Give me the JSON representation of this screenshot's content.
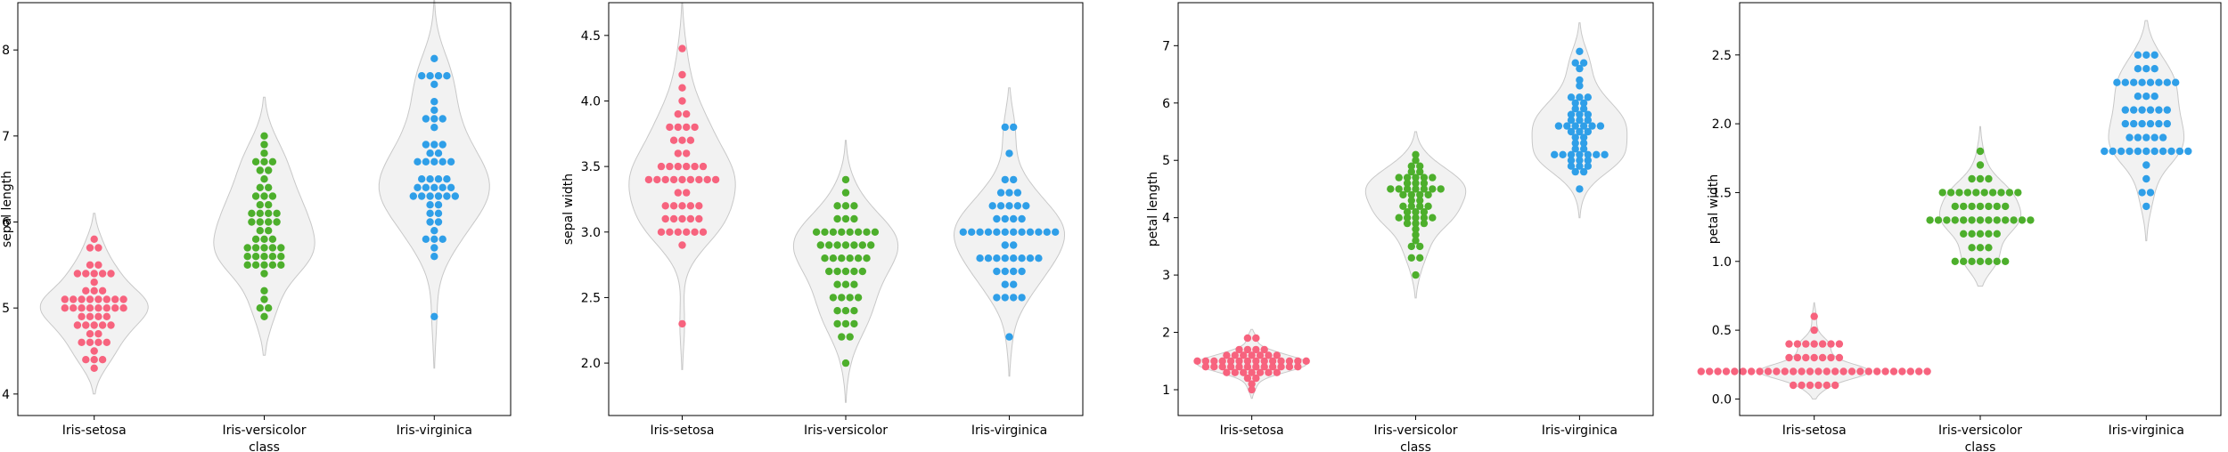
{
  "figure": {
    "background": "#ffffff",
    "violin_fill": "#f2f2f2",
    "violin_stroke": "#c8c8c8",
    "species_colors": {
      "Iris-setosa": "#f7637e",
      "Iris-versicolor": "#4daf2c",
      "Iris-virginica": "#2f9fe8"
    }
  },
  "chart_data": [
    {
      "type": "violin-swarm",
      "xlabel": "class",
      "ylabel": "sepal length",
      "categories": [
        "Iris-setosa",
        "Iris-versicolor",
        "Iris-virginica"
      ],
      "ylim": [
        3.75,
        8.55
      ],
      "yticks": [
        4,
        5,
        6,
        7,
        8
      ],
      "yticklabels": [
        "4",
        "5",
        "6",
        "7",
        "8"
      ],
      "violin_range": [
        [
          4.0,
          6.1
        ],
        [
          4.45,
          7.45
        ],
        [
          4.3,
          8.8
        ]
      ],
      "series": [
        {
          "name": "Iris-setosa",
          "values": [
            5.1,
            4.9,
            4.7,
            4.6,
            5.0,
            5.4,
            4.6,
            5.0,
            4.4,
            4.9,
            5.4,
            4.8,
            4.8,
            4.3,
            5.8,
            5.7,
            5.4,
            5.1,
            5.7,
            5.1,
            5.4,
            5.1,
            4.6,
            5.1,
            4.8,
            5.0,
            5.0,
            5.2,
            5.2,
            4.7,
            4.8,
            5.4,
            5.2,
            5.5,
            4.9,
            5.0,
            5.5,
            4.9,
            4.4,
            5.1,
            5.0,
            4.5,
            4.4,
            5.0,
            5.1,
            4.8,
            5.1,
            4.6,
            5.3,
            5.0
          ]
        },
        {
          "name": "Iris-versicolor",
          "values": [
            7.0,
            6.4,
            6.9,
            5.5,
            6.5,
            5.7,
            6.3,
            4.9,
            6.6,
            5.2,
            5.0,
            5.9,
            6.0,
            6.1,
            5.6,
            6.7,
            5.6,
            5.8,
            6.2,
            5.6,
            5.9,
            6.1,
            6.3,
            6.1,
            6.4,
            6.6,
            6.8,
            6.7,
            6.0,
            5.7,
            5.5,
            5.5,
            5.8,
            6.0,
            5.4,
            6.0,
            6.7,
            6.3,
            5.6,
            5.5,
            5.5,
            6.1,
            5.8,
            5.0,
            5.6,
            5.7,
            5.7,
            6.2,
            5.1,
            5.7
          ]
        },
        {
          "name": "Iris-virginica",
          "values": [
            6.3,
            5.8,
            7.1,
            6.3,
            6.5,
            7.6,
            4.9,
            7.3,
            6.7,
            7.2,
            6.5,
            6.4,
            6.8,
            5.7,
            5.8,
            6.4,
            6.5,
            7.7,
            7.7,
            6.0,
            6.9,
            5.6,
            7.7,
            6.3,
            6.7,
            7.2,
            6.2,
            6.1,
            6.4,
            7.2,
            7.4,
            7.9,
            6.4,
            6.3,
            6.1,
            7.7,
            6.3,
            6.4,
            6.0,
            6.9,
            6.7,
            6.9,
            5.8,
            6.8,
            6.7,
            6.7,
            6.3,
            6.5,
            6.2,
            5.9
          ]
        }
      ]
    },
    {
      "type": "violin-swarm",
      "xlabel": "",
      "ylabel": "sepal width",
      "categories": [
        "Iris-setosa",
        "Iris-versicolor",
        "Iris-virginica"
      ],
      "ylim": [
        1.6,
        4.75
      ],
      "yticks": [
        2.0,
        2.5,
        3.0,
        3.5,
        4.0,
        4.5
      ],
      "yticklabels": [
        "2.0",
        "2.5",
        "3.0",
        "3.5",
        "4.0",
        "4.5"
      ],
      "violin_range": [
        [
          1.95,
          4.75
        ],
        [
          1.7,
          3.7
        ],
        [
          1.9,
          4.1
        ]
      ],
      "series": [
        {
          "name": "Iris-setosa",
          "values": [
            3.5,
            3.0,
            3.2,
            3.1,
            3.6,
            3.9,
            3.4,
            3.4,
            2.9,
            3.1,
            3.7,
            3.4,
            3.0,
            3.0,
            4.0,
            4.4,
            3.9,
            3.5,
            3.8,
            3.8,
            3.4,
            3.7,
            3.6,
            3.3,
            3.4,
            3.0,
            3.4,
            3.5,
            3.4,
            3.2,
            3.1,
            3.4,
            4.1,
            4.2,
            3.1,
            3.2,
            3.5,
            3.1,
            3.0,
            3.4,
            3.5,
            2.3,
            3.2,
            3.5,
            3.8,
            3.0,
            3.8,
            3.2,
            3.7,
            3.3
          ]
        },
        {
          "name": "Iris-versicolor",
          "values": [
            3.2,
            3.2,
            3.1,
            2.3,
            2.8,
            2.8,
            3.3,
            2.4,
            2.9,
            2.7,
            2.0,
            3.0,
            2.2,
            2.9,
            2.9,
            3.1,
            3.0,
            2.7,
            2.2,
            2.5,
            3.2,
            2.8,
            2.5,
            2.8,
            2.9,
            3.0,
            2.8,
            3.0,
            2.9,
            2.6,
            2.4,
            2.4,
            2.7,
            2.7,
            3.0,
            3.4,
            3.1,
            2.3,
            3.0,
            2.5,
            2.6,
            3.0,
            2.6,
            2.3,
            2.7,
            3.0,
            2.9,
            2.9,
            2.5,
            2.8
          ]
        },
        {
          "name": "Iris-virginica",
          "values": [
            3.3,
            2.7,
            3.0,
            2.9,
            3.0,
            3.0,
            2.5,
            2.9,
            2.5,
            3.6,
            3.2,
            2.7,
            3.0,
            2.5,
            2.8,
            3.2,
            3.0,
            3.8,
            2.6,
            2.2,
            3.2,
            2.8,
            2.8,
            2.7,
            3.3,
            3.2,
            2.8,
            3.0,
            2.8,
            3.0,
            2.8,
            3.8,
            2.8,
            2.8,
            2.6,
            3.0,
            3.4,
            3.1,
            3.0,
            3.1,
            3.1,
            3.1,
            2.7,
            3.2,
            3.3,
            3.0,
            2.5,
            3.0,
            3.4,
            3.0
          ]
        }
      ]
    },
    {
      "type": "violin-swarm",
      "xlabel": "class",
      "ylabel": "petal length",
      "categories": [
        "Iris-setosa",
        "Iris-versicolor",
        "Iris-virginica"
      ],
      "ylim": [
        0.55,
        7.75
      ],
      "yticks": [
        1,
        2,
        3,
        4,
        5,
        6,
        7
      ],
      "yticklabels": [
        "1",
        "2",
        "3",
        "4",
        "5",
        "6",
        "7"
      ],
      "violin_range": [
        [
          0.85,
          2.05
        ],
        [
          2.6,
          5.5
        ],
        [
          4.0,
          7.4
        ]
      ],
      "series": [
        {
          "name": "Iris-setosa",
          "values": [
            1.4,
            1.4,
            1.3,
            1.5,
            1.4,
            1.7,
            1.4,
            1.5,
            1.4,
            1.5,
            1.5,
            1.6,
            1.4,
            1.1,
            1.2,
            1.5,
            1.3,
            1.4,
            1.7,
            1.5,
            1.7,
            1.5,
            1.0,
            1.7,
            1.9,
            1.6,
            1.6,
            1.5,
            1.4,
            1.6,
            1.6,
            1.5,
            1.5,
            1.4,
            1.5,
            1.2,
            1.3,
            1.5,
            1.3,
            1.5,
            1.3,
            1.3,
            1.3,
            1.6,
            1.9,
            1.4,
            1.6,
            1.4,
            1.5,
            1.4
          ]
        },
        {
          "name": "Iris-versicolor",
          "values": [
            4.7,
            4.5,
            4.9,
            4.0,
            4.6,
            4.5,
            4.7,
            3.3,
            4.6,
            3.9,
            3.5,
            4.2,
            4.0,
            4.7,
            3.6,
            4.4,
            4.5,
            4.1,
            4.5,
            3.9,
            4.8,
            4.0,
            4.9,
            4.7,
            4.3,
            4.4,
            4.8,
            5.0,
            4.5,
            3.5,
            3.8,
            3.7,
            3.9,
            5.1,
            4.5,
            4.5,
            4.7,
            4.4,
            4.1,
            4.0,
            4.4,
            4.6,
            4.0,
            3.3,
            4.2,
            4.2,
            4.2,
            4.3,
            3.0,
            4.1
          ]
        },
        {
          "name": "Iris-virginica",
          "values": [
            6.0,
            5.1,
            5.9,
            5.6,
            5.8,
            6.6,
            4.5,
            6.3,
            5.8,
            6.1,
            5.1,
            5.3,
            5.5,
            5.0,
            5.1,
            5.3,
            5.5,
            6.7,
            6.9,
            5.0,
            5.7,
            4.9,
            6.7,
            4.9,
            5.7,
            6.0,
            4.8,
            4.9,
            5.6,
            5.8,
            6.1,
            6.4,
            5.6,
            5.1,
            5.6,
            6.1,
            5.6,
            5.5,
            4.8,
            5.4,
            5.6,
            5.1,
            5.1,
            5.9,
            5.7,
            5.2,
            5.0,
            5.2,
            5.4,
            5.1
          ]
        }
      ]
    },
    {
      "type": "violin-swarm",
      "xlabel": "class",
      "ylabel": "petal width",
      "categories": [
        "Iris-setosa",
        "Iris-versicolor",
        "Iris-virginica"
      ],
      "ylim": [
        -0.12,
        2.88
      ],
      "yticks": [
        0.0,
        0.5,
        1.0,
        1.5,
        2.0,
        2.5
      ],
      "yticklabels": [
        "0.0",
        "0.5",
        "1.0",
        "1.5",
        "2.0",
        "2.5"
      ],
      "violin_range": [
        [
          0.0,
          0.7
        ],
        [
          0.82,
          1.98
        ],
        [
          1.15,
          2.75
        ]
      ],
      "series": [
        {
          "name": "Iris-setosa",
          "values": [
            0.2,
            0.2,
            0.2,
            0.2,
            0.2,
            0.4,
            0.3,
            0.2,
            0.2,
            0.1,
            0.2,
            0.2,
            0.1,
            0.1,
            0.2,
            0.4,
            0.4,
            0.3,
            0.3,
            0.3,
            0.2,
            0.4,
            0.2,
            0.5,
            0.2,
            0.2,
            0.4,
            0.2,
            0.2,
            0.2,
            0.2,
            0.4,
            0.1,
            0.2,
            0.1,
            0.2,
            0.2,
            0.1,
            0.2,
            0.2,
            0.3,
            0.3,
            0.2,
            0.6,
            0.4,
            0.3,
            0.2,
            0.2,
            0.2,
            0.2
          ]
        },
        {
          "name": "Iris-versicolor",
          "values": [
            1.4,
            1.5,
            1.5,
            1.3,
            1.5,
            1.3,
            1.6,
            1.0,
            1.3,
            1.4,
            1.0,
            1.5,
            1.0,
            1.4,
            1.3,
            1.4,
            1.5,
            1.0,
            1.5,
            1.1,
            1.8,
            1.3,
            1.5,
            1.2,
            1.3,
            1.4,
            1.4,
            1.7,
            1.5,
            1.0,
            1.1,
            1.0,
            1.2,
            1.6,
            1.5,
            1.6,
            1.5,
            1.3,
            1.3,
            1.3,
            1.2,
            1.4,
            1.2,
            1.0,
            1.3,
            1.2,
            1.3,
            1.3,
            1.1,
            1.3
          ]
        },
        {
          "name": "Iris-virginica",
          "values": [
            2.5,
            1.9,
            2.1,
            1.8,
            2.2,
            2.1,
            1.7,
            1.8,
            1.8,
            2.5,
            2.0,
            1.9,
            2.1,
            2.0,
            2.4,
            2.3,
            1.8,
            2.2,
            2.3,
            1.5,
            2.3,
            2.0,
            2.0,
            1.8,
            2.1,
            1.8,
            1.8,
            1.8,
            2.1,
            1.6,
            1.9,
            2.0,
            2.2,
            1.5,
            1.4,
            2.3,
            2.4,
            1.8,
            1.8,
            2.1,
            2.4,
            2.3,
            1.9,
            2.3,
            2.5,
            2.3,
            1.9,
            2.0,
            2.3,
            1.8
          ]
        }
      ]
    }
  ]
}
